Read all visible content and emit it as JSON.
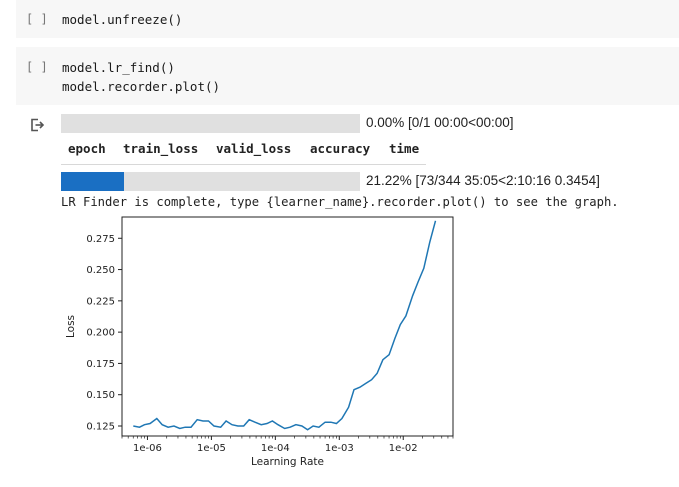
{
  "cells": [
    {
      "run_label": "[ ]",
      "code_lines": [
        "model.unfreeze()"
      ]
    },
    {
      "run_label": "[ ]",
      "code_lines": [
        "model.lr_find()",
        "model.recorder.plot()"
      ]
    }
  ],
  "output": {
    "icon": "output-arrow-icon",
    "progress1": {
      "fraction": 0.0,
      "text": "0.00% [0/1 00:00<00:00]"
    },
    "table_headers": [
      "epoch",
      "train_loss",
      "valid_loss",
      "accuracy",
      "time"
    ],
    "progress2": {
      "fraction": 0.2122,
      "text": "21.22% [73/344 35:05<2:10:16 0.3454]"
    },
    "message": "LR Finder is complete, type {learner_name}.recorder.plot() to see the graph.",
    "colors": {
      "progress_fill": "#1a6fc3",
      "progress_track": "#e0e0e0",
      "line": "#1f77b4"
    }
  },
  "chart_data": {
    "type": "line",
    "xlabel": "Learning Rate",
    "ylabel": "Loss",
    "x_scale": "log",
    "xlim": [
      4e-07,
      0.06
    ],
    "ylim": [
      0.117,
      0.292
    ],
    "x_ticks": [
      1e-06,
      1e-05,
      0.0001,
      0.001,
      0.01
    ],
    "x_tick_labels": [
      "1e-06",
      "1e-05",
      "1e-04",
      "1e-03",
      "1e-02"
    ],
    "y_ticks": [
      0.125,
      0.15,
      0.175,
      0.2,
      0.225,
      0.25,
      0.275
    ],
    "y_tick_labels": [
      "0.125",
      "0.150",
      "0.175",
      "0.200",
      "0.225",
      "0.250",
      "0.275"
    ],
    "grid": false,
    "series": [
      {
        "x": [
          6e-07,
          7.5e-07,
          9e-07,
          1.1e-06,
          1.4e-06,
          1.7e-06,
          2.1e-06,
          2.6e-06,
          3.2e-06,
          3.9e-06,
          4.8e-06,
          6e-06,
          7.4e-06,
          9e-06,
          1.1e-05,
          1.4e-05,
          1.7e-05,
          2.1e-05,
          2.6e-05,
          3.2e-05,
          3.9e-05,
          4.8e-05,
          6e-05,
          7.4e-05,
          9e-05,
          0.00011,
          0.00014,
          0.00017,
          0.00021,
          0.00026,
          0.00032,
          0.00039,
          0.00048,
          0.0006,
          0.00074,
          0.0009,
          0.0011,
          0.0014,
          0.0017,
          0.0021,
          0.0026,
          0.0032,
          0.0039,
          0.0048,
          0.006,
          0.0074,
          0.009,
          0.011,
          0.014,
          0.017,
          0.021,
          0.026,
          0.032
        ],
        "y": [
          0.125,
          0.124,
          0.126,
          0.127,
          0.131,
          0.126,
          0.124,
          0.125,
          0.123,
          0.124,
          0.124,
          0.13,
          0.129,
          0.129,
          0.125,
          0.124,
          0.129,
          0.126,
          0.125,
          0.125,
          0.13,
          0.128,
          0.126,
          0.127,
          0.129,
          0.126,
          0.123,
          0.124,
          0.126,
          0.125,
          0.122,
          0.125,
          0.124,
          0.128,
          0.128,
          0.127,
          0.131,
          0.14,
          0.154,
          0.156,
          0.159,
          0.162,
          0.167,
          0.178,
          0.182,
          0.195,
          0.206,
          0.213,
          0.229,
          0.24,
          0.251,
          0.272,
          0.289
        ]
      }
    ]
  }
}
